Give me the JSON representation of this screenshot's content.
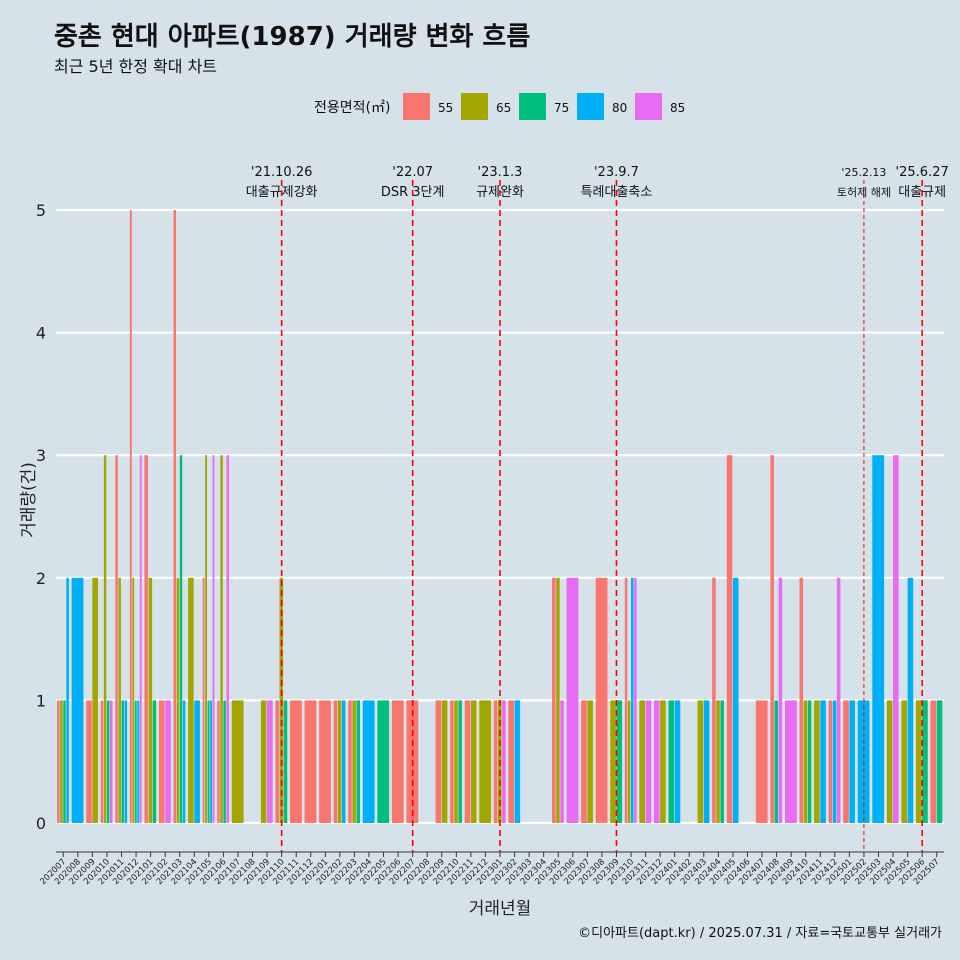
{
  "title": "중촌 현대 아파트(1987) 거래량 변화 흐름",
  "subtitle": "최근 5년 한정 확대 차트",
  "caption": "©디아파트(dapt.kr) / 2025.07.31 / 자료=국토교통부 실거래가",
  "colors": {
    "background": "#d6e2ea",
    "grid": "#ffffff",
    "event_line": "#ff0000"
  },
  "chart_data": {
    "type": "bar",
    "xlabel": "거래년월",
    "ylabel": "거래량(건)",
    "ylim": [
      0,
      5
    ],
    "yticks": [
      0,
      1,
      2,
      3,
      4,
      5
    ],
    "legend": {
      "title": "전용면적(㎡)",
      "position": "top",
      "items": [
        {
          "name": "55",
          "color": "#f8766d"
        },
        {
          "name": "65",
          "color": "#a3a500"
        },
        {
          "name": "75",
          "color": "#00bf7d"
        },
        {
          "name": "80",
          "color": "#00b0f6"
        },
        {
          "name": "85",
          "color": "#e76bf3"
        }
      ]
    },
    "categories": [
      "202007",
      "202008",
      "202009",
      "202010",
      "202011",
      "202012",
      "202101",
      "202102",
      "202103",
      "202104",
      "202105",
      "202106",
      "202107",
      "202108",
      "202109",
      "202110",
      "202111",
      "202112",
      "202201",
      "202202",
      "202203",
      "202204",
      "202205",
      "202206",
      "202207",
      "202208",
      "202209",
      "202210",
      "202211",
      "202212",
      "202301",
      "202302",
      "202303",
      "202304",
      "202305",
      "202306",
      "202307",
      "202308",
      "202309",
      "202310",
      "202311",
      "202312",
      "202401",
      "202402",
      "202403",
      "202404",
      "202405",
      "202406",
      "202407",
      "202408",
      "202409",
      "202410",
      "202411",
      "202412",
      "202501",
      "202502",
      "202503",
      "202504",
      "202505",
      "202506",
      "202507"
    ],
    "bars": [
      {
        "month": "202007",
        "values": [
          {
            "s": "55",
            "v": 1
          },
          {
            "s": "65",
            "v": 1
          },
          {
            "s": "75",
            "v": 1
          },
          {
            "s": "80",
            "v": 2
          }
        ]
      },
      {
        "month": "202008",
        "values": [
          {
            "s": "80",
            "v": 2
          }
        ]
      },
      {
        "month": "202009",
        "values": [
          {
            "s": "55",
            "v": 1
          },
          {
            "s": "65",
            "v": 2
          }
        ]
      },
      {
        "month": "202010",
        "values": [
          {
            "s": "55",
            "v": 1
          },
          {
            "s": "65",
            "v": 3
          },
          {
            "s": "75",
            "v": 1
          },
          {
            "s": "85",
            "v": 1
          }
        ]
      },
      {
        "month": "202011",
        "values": [
          {
            "s": "55",
            "v": 3
          },
          {
            "s": "65",
            "v": 2
          },
          {
            "s": "75",
            "v": 1
          },
          {
            "s": "80",
            "v": 1
          }
        ]
      },
      {
        "month": "202012",
        "values": [
          {
            "s": "55",
            "v": 5
          },
          {
            "s": "65",
            "v": 2
          },
          {
            "s": "75",
            "v": 1
          },
          {
            "s": "80",
            "v": 1
          },
          {
            "s": "85",
            "v": 3
          }
        ]
      },
      {
        "month": "202101",
        "values": [
          {
            "s": "55",
            "v": 3
          },
          {
            "s": "65",
            "v": 2
          },
          {
            "s": "75",
            "v": 1
          }
        ]
      },
      {
        "month": "202102",
        "values": [
          {
            "s": "55",
            "v": 1
          },
          {
            "s": "85",
            "v": 1
          }
        ]
      },
      {
        "month": "202103",
        "values": [
          {
            "s": "55",
            "v": 5
          },
          {
            "s": "65",
            "v": 2
          },
          {
            "s": "75",
            "v": 3
          },
          {
            "s": "80",
            "v": 1
          }
        ]
      },
      {
        "month": "202104",
        "values": [
          {
            "s": "65",
            "v": 2
          },
          {
            "s": "80",
            "v": 1
          }
        ]
      },
      {
        "month": "202105",
        "values": [
          {
            "s": "55",
            "v": 2
          },
          {
            "s": "65",
            "v": 3
          },
          {
            "s": "75",
            "v": 1
          },
          {
            "s": "80",
            "v": 1
          },
          {
            "s": "85",
            "v": 3
          }
        ]
      },
      {
        "month": "202106",
        "values": [
          {
            "s": "55",
            "v": 1
          },
          {
            "s": "65",
            "v": 3
          },
          {
            "s": "75",
            "v": 1
          },
          {
            "s": "85",
            "v": 3
          }
        ]
      },
      {
        "month": "202107",
        "values": [
          {
            "s": "65",
            "v": 1
          }
        ]
      },
      {
        "month": "202108",
        "values": []
      },
      {
        "month": "202109",
        "values": [
          {
            "s": "65",
            "v": 1
          },
          {
            "s": "85",
            "v": 1
          }
        ]
      },
      {
        "month": "202110",
        "values": [
          {
            "s": "55",
            "v": 1
          },
          {
            "s": "65",
            "v": 2
          },
          {
            "s": "75",
            "v": 1
          }
        ]
      },
      {
        "month": "202111",
        "values": [
          {
            "s": "55",
            "v": 1
          }
        ]
      },
      {
        "month": "202112",
        "values": [
          {
            "s": "55",
            "v": 1
          }
        ]
      },
      {
        "month": "202201",
        "values": [
          {
            "s": "55",
            "v": 1
          }
        ]
      },
      {
        "month": "202202",
        "values": [
          {
            "s": "55",
            "v": 1
          },
          {
            "s": "65",
            "v": 1
          },
          {
            "s": "80",
            "v": 1
          }
        ]
      },
      {
        "month": "202203",
        "values": [
          {
            "s": "55",
            "v": 1
          },
          {
            "s": "65",
            "v": 1
          },
          {
            "s": "75",
            "v": 1
          }
        ]
      },
      {
        "month": "202204",
        "values": [
          {
            "s": "80",
            "v": 1
          }
        ]
      },
      {
        "month": "202205",
        "values": [
          {
            "s": "75",
            "v": 1
          }
        ]
      },
      {
        "month": "202206",
        "values": [
          {
            "s": "55",
            "v": 1
          }
        ]
      },
      {
        "month": "202207",
        "values": [
          {
            "s": "55",
            "v": 1
          }
        ]
      },
      {
        "month": "202208",
        "values": []
      },
      {
        "month": "202209",
        "values": [
          {
            "s": "55",
            "v": 1
          },
          {
            "s": "65",
            "v": 1
          }
        ]
      },
      {
        "month": "202210",
        "values": [
          {
            "s": "55",
            "v": 1
          },
          {
            "s": "65",
            "v": 1
          },
          {
            "s": "75",
            "v": 1
          }
        ]
      },
      {
        "month": "202211",
        "values": [
          {
            "s": "55",
            "v": 1
          },
          {
            "s": "65",
            "v": 1
          }
        ]
      },
      {
        "month": "202212",
        "values": [
          {
            "s": "65",
            "v": 1
          }
        ]
      },
      {
        "month": "202301",
        "values": [
          {
            "s": "55",
            "v": 1
          },
          {
            "s": "65",
            "v": 1
          },
          {
            "s": "85",
            "v": 1
          }
        ]
      },
      {
        "month": "202302",
        "values": [
          {
            "s": "55",
            "v": 1
          },
          {
            "s": "80",
            "v": 1
          }
        ]
      },
      {
        "month": "202303",
        "values": []
      },
      {
        "month": "202304",
        "values": []
      },
      {
        "month": "202305",
        "values": [
          {
            "s": "55",
            "v": 2
          },
          {
            "s": "65",
            "v": 2
          },
          {
            "s": "85",
            "v": 1
          }
        ]
      },
      {
        "month": "202306",
        "values": [
          {
            "s": "85",
            "v": 2
          }
        ]
      },
      {
        "month": "202307",
        "values": [
          {
            "s": "55",
            "v": 1
          },
          {
            "s": "65",
            "v": 1
          }
        ]
      },
      {
        "month": "202308",
        "values": [
          {
            "s": "55",
            "v": 2
          }
        ]
      },
      {
        "month": "202309",
        "values": [
          {
            "s": "65",
            "v": 1
          },
          {
            "s": "75",
            "v": 1
          }
        ]
      },
      {
        "month": "202310",
        "values": [
          {
            "s": "55",
            "v": 2
          },
          {
            "s": "65",
            "v": 1
          },
          {
            "s": "80",
            "v": 2
          },
          {
            "s": "85",
            "v": 2
          }
        ]
      },
      {
        "month": "202311",
        "values": [
          {
            "s": "65",
            "v": 1
          },
          {
            "s": "85",
            "v": 1
          }
        ]
      },
      {
        "month": "202312",
        "values": [
          {
            "s": "85",
            "v": 1
          },
          {
            "s": "65",
            "v": 1
          }
        ]
      },
      {
        "month": "202401",
        "values": [
          {
            "s": "75",
            "v": 1
          },
          {
            "s": "80",
            "v": 1
          }
        ]
      },
      {
        "month": "202402",
        "values": []
      },
      {
        "month": "202403",
        "values": [
          {
            "s": "65",
            "v": 1
          },
          {
            "s": "80",
            "v": 1
          }
        ]
      },
      {
        "month": "202404",
        "values": [
          {
            "s": "55",
            "v": 2
          },
          {
            "s": "65",
            "v": 1
          },
          {
            "s": "75",
            "v": 1
          }
        ]
      },
      {
        "month": "202405",
        "values": [
          {
            "s": "55",
            "v": 3
          },
          {
            "s": "80",
            "v": 2
          }
        ]
      },
      {
        "month": "202406",
        "values": []
      },
      {
        "month": "202407",
        "values": [
          {
            "s": "55",
            "v": 1
          }
        ]
      },
      {
        "month": "202408",
        "values": [
          {
            "s": "55",
            "v": 3
          },
          {
            "s": "75",
            "v": 1
          },
          {
            "s": "85",
            "v": 2
          }
        ]
      },
      {
        "month": "202409",
        "values": [
          {
            "s": "85",
            "v": 1
          }
        ]
      },
      {
        "month": "202410",
        "values": [
          {
            "s": "55",
            "v": 2
          },
          {
            "s": "65",
            "v": 1
          },
          {
            "s": "75",
            "v": 1
          }
        ]
      },
      {
        "month": "202411",
        "values": [
          {
            "s": "65",
            "v": 1
          },
          {
            "s": "80",
            "v": 1
          }
        ]
      },
      {
        "month": "202412",
        "values": [
          {
            "s": "55",
            "v": 1
          },
          {
            "s": "80",
            "v": 1
          },
          {
            "s": "85",
            "v": 2
          }
        ]
      },
      {
        "month": "202501",
        "values": [
          {
            "s": "55",
            "v": 1
          },
          {
            "s": "80",
            "v": 1
          }
        ]
      },
      {
        "month": "202502",
        "values": [
          {
            "s": "80",
            "v": 1
          }
        ]
      },
      {
        "month": "202503",
        "values": [
          {
            "s": "80",
            "v": 3
          }
        ]
      },
      {
        "month": "202504",
        "values": [
          {
            "s": "65",
            "v": 1
          },
          {
            "s": "85",
            "v": 3
          }
        ]
      },
      {
        "month": "202505",
        "values": [
          {
            "s": "65",
            "v": 1
          },
          {
            "s": "80",
            "v": 2
          }
        ]
      },
      {
        "month": "202506",
        "values": [
          {
            "s": "65",
            "v": 1
          },
          {
            "s": "75",
            "v": 1
          }
        ]
      },
      {
        "month": "202507",
        "values": [
          {
            "s": "55",
            "v": 1
          },
          {
            "s": "75",
            "v": 1
          }
        ]
      }
    ],
    "events": [
      {
        "date": "'21.10.26",
        "label": "대출규제강화",
        "month": "202110",
        "dash": "long"
      },
      {
        "date": "'22.07",
        "label": "DSR 3단계",
        "month": "202207",
        "dash": "long"
      },
      {
        "date": "'23.1.3",
        "label": "규제완화",
        "month": "202301",
        "dash": "long"
      },
      {
        "date": "'23.9.7",
        "label": "특례대출축소",
        "month": "202309",
        "dash": "long"
      },
      {
        "date": "'25.2.13",
        "label": "토허제 해제",
        "month": "202502",
        "dash": "short"
      },
      {
        "date": "'25.6.27",
        "label": "대출규제",
        "month": "202506",
        "dash": "long"
      }
    ]
  }
}
